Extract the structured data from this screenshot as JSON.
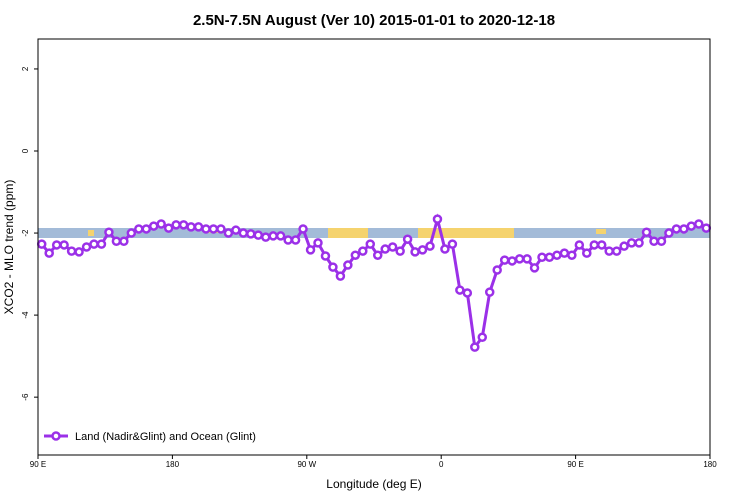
{
  "chart_data": {
    "type": "line",
    "title": "2.5N-7.5N August (Ver 10)   2015-01-01 to 2020-12-18",
    "x_label": "Longitude (deg E)",
    "y_label": "XCO2 - MLO trend (ppm)",
    "x": [
      92.5,
      97.5,
      102.5,
      107.5,
      112.5,
      117.5,
      122.5,
      127.5,
      132.5,
      137.5,
      142.5,
      147.5,
      152.5,
      157.5,
      162.5,
      167.5,
      172.5,
      177.5,
      182.5,
      187.5,
      192.5,
      197.5,
      202.5,
      207.5,
      212.5,
      217.5,
      222.5,
      227.5,
      232.5,
      237.5,
      242.5,
      247.5,
      252.5,
      257.5,
      262.5,
      267.5,
      272.5,
      277.5,
      282.5,
      287.5,
      292.5,
      297.5,
      302.5,
      307.5,
      312.5,
      317.5,
      322.5,
      327.5,
      332.5,
      337.5,
      342.5,
      347.5,
      352.5,
      357.5,
      362.5,
      367.5,
      372.5,
      377.5,
      382.5,
      387.5,
      392.5,
      397.5,
      402.5,
      407.5,
      412.5,
      417.5,
      422.5,
      427.5,
      432.5,
      437.5,
      442.5,
      447.5,
      452.5,
      457.5,
      462.5,
      467.5,
      472.5,
      477.5,
      482.5,
      487.5,
      492.5,
      497.5,
      502.5,
      507.5,
      512.5,
      517.5,
      522.5,
      527.5,
      532.5,
      537.5
    ],
    "series": [
      {
        "name": "Land (Nadir&Glint) and Ocean (Glint)",
        "color": "#9b30e8",
        "values": [
          -2.27,
          -2.49,
          -2.29,
          -2.29,
          -2.44,
          -2.46,
          -2.34,
          -2.27,
          -2.27,
          -1.98,
          -2.2,
          -2.2,
          -2.0,
          -1.9,
          -1.9,
          -1.83,
          -1.78,
          -1.88,
          -1.8,
          -1.8,
          -1.85,
          -1.85,
          -1.9,
          -1.9,
          -1.9,
          -2.0,
          -1.93,
          -2.0,
          -2.02,
          -2.05,
          -2.1,
          -2.07,
          -2.07,
          -2.17,
          -2.17,
          -1.9,
          -2.41,
          -2.24,
          -2.56,
          -2.83,
          -3.05,
          -2.78,
          -2.54,
          -2.44,
          -2.27,
          -2.54,
          -2.39,
          -2.34,
          -2.44,
          -2.15,
          -2.46,
          -2.41,
          -2.32,
          -1.66,
          -2.39,
          -2.27,
          -3.39,
          -3.46,
          -4.78,
          -4.54,
          -3.44,
          -2.9,
          -2.66,
          -2.68,
          -2.63,
          -2.63,
          -2.85,
          -2.59,
          -2.59,
          -2.54,
          -2.49,
          -2.54,
          -2.29,
          -2.49,
          -2.29,
          -2.29,
          -2.44,
          -2.44,
          -2.32,
          -2.24,
          -2.24,
          -1.98,
          -2.2,
          -2.2,
          -2.0,
          -1.9,
          -1.9,
          -1.83,
          -1.78,
          -1.88
        ]
      }
    ],
    "xlim": [
      90,
      540
    ],
    "xticks": [
      {
        "value": 90,
        "label": "90 E"
      },
      180,
      {
        "value": 270,
        "label": "90 W"
      },
      {
        "value": 360,
        "label": "0"
      },
      {
        "value": 450,
        "label": "90 E"
      },
      {
        "value": 540,
        "label": "180"
      }
    ],
    "ylim": [
      -7.41,
      2.73
    ],
    "yticks": [
      -6,
      -4,
      -2,
      0,
      2
    ],
    "legend": "bottom-left"
  }
}
